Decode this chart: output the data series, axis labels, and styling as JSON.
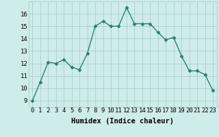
{
  "x": [
    0,
    1,
    2,
    3,
    4,
    5,
    6,
    7,
    8,
    9,
    10,
    11,
    12,
    13,
    14,
    15,
    16,
    17,
    18,
    19,
    20,
    21,
    22,
    23
  ],
  "y": [
    9.0,
    10.5,
    12.1,
    12.0,
    12.3,
    11.7,
    11.5,
    12.8,
    15.0,
    15.4,
    15.0,
    15.0,
    16.5,
    15.2,
    15.2,
    15.2,
    14.5,
    13.9,
    14.1,
    12.6,
    11.4,
    11.4,
    11.1,
    9.8
  ],
  "xlabel": "Humidex (Indice chaleur)",
  "xlim": [
    -0.5,
    23.5
  ],
  "ylim": [
    8.5,
    17
  ],
  "yticks": [
    9,
    10,
    11,
    12,
    13,
    14,
    15,
    16
  ],
  "xticks": [
    0,
    1,
    2,
    3,
    4,
    5,
    6,
    7,
    8,
    9,
    10,
    11,
    12,
    13,
    14,
    15,
    16,
    17,
    18,
    19,
    20,
    21,
    22,
    23
  ],
  "line_color": "#2e7d6e",
  "marker": "D",
  "marker_size": 2.5,
  "bg_color": "#ceecea",
  "grid_color": "#aacfcc",
  "line_width": 1.0,
  "xlabel_fontsize": 7.5,
  "tick_fontsize": 6.5
}
